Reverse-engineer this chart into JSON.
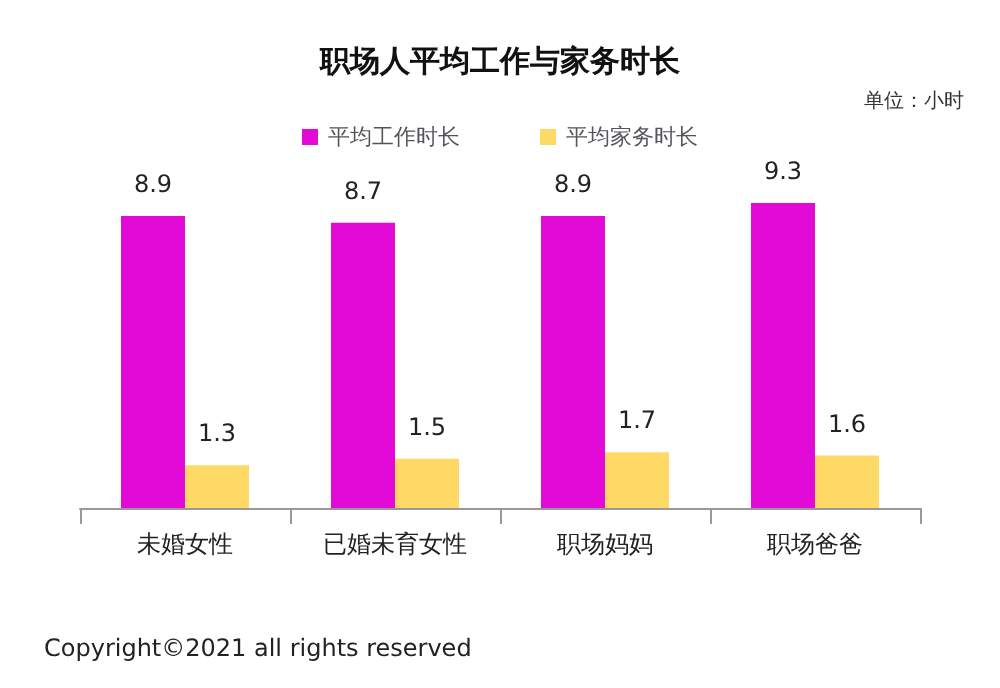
{
  "chart_data": {
    "type": "bar",
    "title": "职场人平均工作与家务时长",
    "categories": [
      "未婚女性",
      "已婚未育女性",
      "职场妈妈",
      "职场爸爸"
    ],
    "series": [
      {
        "name": "平均工作时长",
        "color": "#e20ad6",
        "values": [
          8.9,
          8.7,
          8.9,
          9.3
        ]
      },
      {
        "name": "平均家务时长",
        "color": "#ffd966",
        "values": [
          1.3,
          1.5,
          1.7,
          1.6
        ]
      }
    ],
    "data_labels": true,
    "legend": "top",
    "annotations": [
      "单位：小时",
      "Copyright©2021 all rights reserved"
    ]
  }
}
